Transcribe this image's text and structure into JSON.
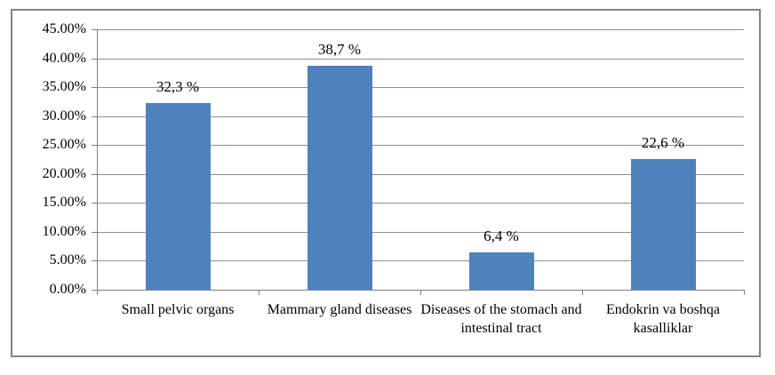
{
  "chart_data": {
    "type": "bar",
    "categories": [
      "Small pelvic organs",
      "Mammary gland diseases",
      "Diseases of the stomach and intestinal tract",
      "Endokrin va boshqa kasalliklar"
    ],
    "values": [
      32.3,
      38.7,
      6.4,
      22.6
    ],
    "value_labels": [
      "32,3 %",
      "38,7 %",
      "6,4 %",
      "22,6 %"
    ],
    "y_tick_labels": [
      "45.00%",
      "40.00%",
      "35.00%",
      "30.00%",
      "25.00%",
      "20.00%",
      "15.00%",
      "10.00%",
      "5.00%",
      "0.00%"
    ],
    "ylim": [
      0,
      45
    ],
    "grid": true,
    "legend": false,
    "colors": {
      "bar": "#4F81BD",
      "gridline": "#909090",
      "axis": "#808080",
      "frame_border": "#838383",
      "text": "#000000",
      "background": "#FFFFFF"
    }
  }
}
